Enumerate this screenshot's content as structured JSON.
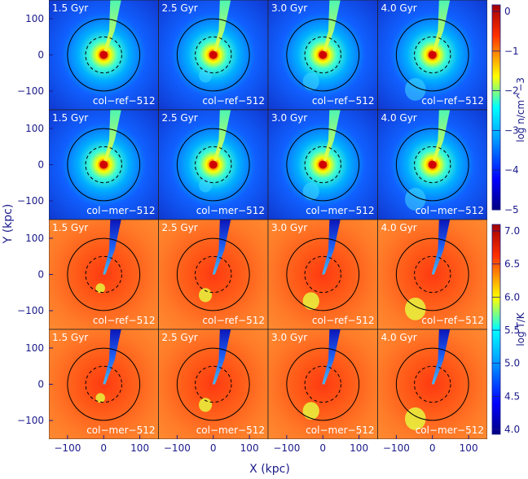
{
  "figure": {
    "x_axis_label": "X (kpc)",
    "y_axis_label": "Y (kpc)",
    "x_ticks": [
      "−100",
      "0",
      "100"
    ],
    "y_ticks": [
      "100",
      "0",
      "−100"
    ]
  },
  "times": [
    "1.5 Gyr",
    "2.5 Gyr",
    "3.0 Gyr",
    "4.0 Gyr"
  ],
  "rows": [
    {
      "quantity": "density",
      "run": "col−ref−512"
    },
    {
      "quantity": "density",
      "run": "col−mer−512"
    },
    {
      "quantity": "temperature",
      "run": "col−ref−512"
    },
    {
      "quantity": "temperature",
      "run": "col−mer−512"
    }
  ],
  "colorbars": {
    "density": {
      "label": "log n/cm^−3",
      "ticks": [
        "0",
        "−1",
        "−2",
        "−3",
        "−4",
        "−5"
      ]
    },
    "temperature": {
      "label": "log T/K",
      "ticks": [
        "7.0",
        "6.5",
        "6.0",
        "5.5",
        "5.0",
        "4.5",
        "4.0"
      ]
    }
  },
  "colors": {
    "axis": "#1a1a8a",
    "panel_text": "#ffffff",
    "circle": "#000000"
  }
}
